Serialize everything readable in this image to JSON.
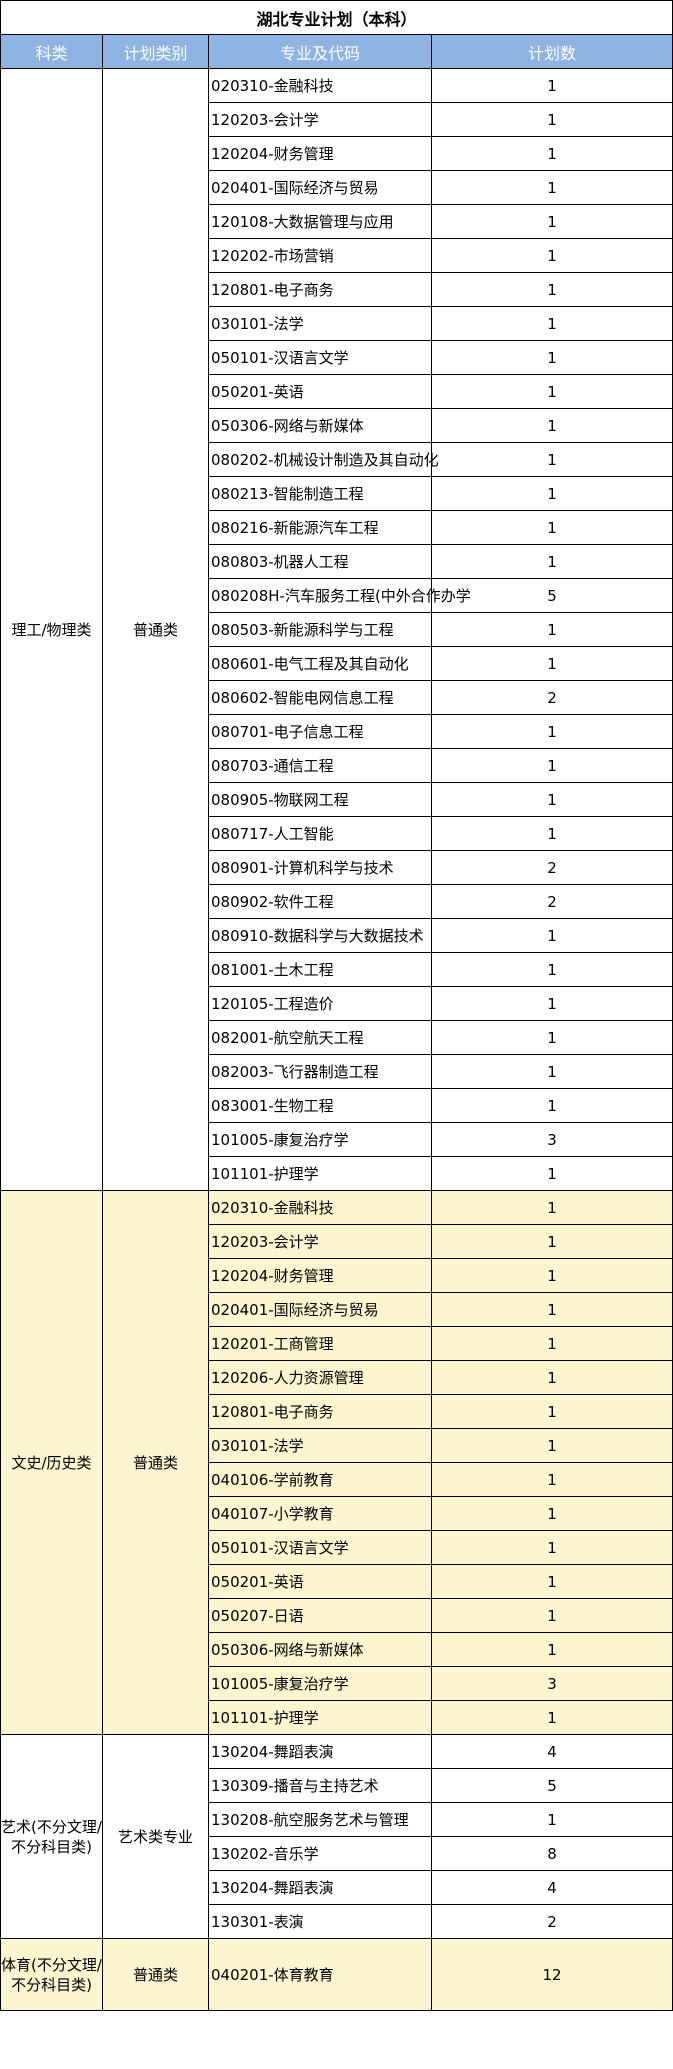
{
  "title": "湖北专业计划（本科）",
  "headers": [
    "科类",
    "计划类别",
    "专业及代码",
    "计划数"
  ],
  "colors": {
    "header_bg": "#8DB4E2",
    "highlight_bg": "#FBF5D0"
  },
  "groups": [
    {
      "category": "理工/物理类",
      "plan_type": "普通类",
      "highlight": false,
      "rows": [
        [
          "020310-金融科技",
          "1"
        ],
        [
          "120203-会计学",
          "1"
        ],
        [
          "120204-财务管理",
          "1"
        ],
        [
          "020401-国际经济与贸易",
          "1"
        ],
        [
          "120108-大数据管理与应用",
          "1"
        ],
        [
          "120202-市场营销",
          "1"
        ],
        [
          "120801-电子商务",
          "1"
        ],
        [
          "030101-法学",
          "1"
        ],
        [
          "050101-汉语言文学",
          "1"
        ],
        [
          "050201-英语",
          "1"
        ],
        [
          "050306-网络与新媒体",
          "1"
        ],
        [
          "080202-机械设计制造及其自动化",
          "1"
        ],
        [
          "080213-智能制造工程",
          "1"
        ],
        [
          "080216-新能源汽车工程",
          "1"
        ],
        [
          "080803-机器人工程",
          "1"
        ],
        [
          "080208H-汽车服务工程(中外合作办学",
          "5"
        ],
        [
          "080503-新能源科学与工程",
          "1"
        ],
        [
          "080601-电气工程及其自动化",
          "1"
        ],
        [
          "080602-智能电网信息工程",
          "2"
        ],
        [
          "080701-电子信息工程",
          "1"
        ],
        [
          "080703-通信工程",
          "1"
        ],
        [
          "080905-物联网工程",
          "1"
        ],
        [
          "080717-人工智能",
          "1"
        ],
        [
          "080901-计算机科学与技术",
          "2"
        ],
        [
          "080902-软件工程",
          "2"
        ],
        [
          "080910-数据科学与大数据技术",
          "1"
        ],
        [
          "081001-土木工程",
          "1"
        ],
        [
          "120105-工程造价",
          "1"
        ],
        [
          "082001-航空航天工程",
          "1"
        ],
        [
          "082003-飞行器制造工程",
          "1"
        ],
        [
          "083001-生物工程",
          "1"
        ],
        [
          "101005-康复治疗学",
          "3"
        ],
        [
          "101101-护理学",
          "1"
        ]
      ]
    },
    {
      "category": "文史/历史类",
      "plan_type": "普通类",
      "highlight": true,
      "rows": [
        [
          "020310-金融科技",
          "1"
        ],
        [
          "120203-会计学",
          "1"
        ],
        [
          "120204-财务管理",
          "1"
        ],
        [
          "020401-国际经济与贸易",
          "1"
        ],
        [
          "120201-工商管理",
          "1"
        ],
        [
          "120206-人力资源管理",
          "1"
        ],
        [
          "120801-电子商务",
          "1"
        ],
        [
          "030101-法学",
          "1"
        ],
        [
          "040106-学前教育",
          "1"
        ],
        [
          "040107-小学教育",
          "1"
        ],
        [
          "050101-汉语言文学",
          "1"
        ],
        [
          "050201-英语",
          "1"
        ],
        [
          "050207-日语",
          "1"
        ],
        [
          "050306-网络与新媒体",
          "1"
        ],
        [
          "101005-康复治疗学",
          "3"
        ],
        [
          "101101-护理学",
          "1"
        ]
      ]
    },
    {
      "category": "艺术(不分文理/不分科目类)",
      "plan_type": "艺术类专业",
      "highlight": false,
      "rows": [
        [
          "130204-舞蹈表演",
          "4"
        ],
        [
          "130309-播音与主持艺术",
          "5"
        ],
        [
          "130208-航空服务艺术与管理",
          "1"
        ],
        [
          "130202-音乐学",
          "8"
        ],
        [
          "130204-舞蹈表演",
          "4"
        ],
        [
          "130301-表演",
          "2"
        ]
      ]
    },
    {
      "category": "体育(不分文理/不分科目类)",
      "plan_type": "普通类",
      "highlight": true,
      "tall": true,
      "rows": [
        [
          "040201-体育教育",
          "12"
        ]
      ]
    }
  ]
}
